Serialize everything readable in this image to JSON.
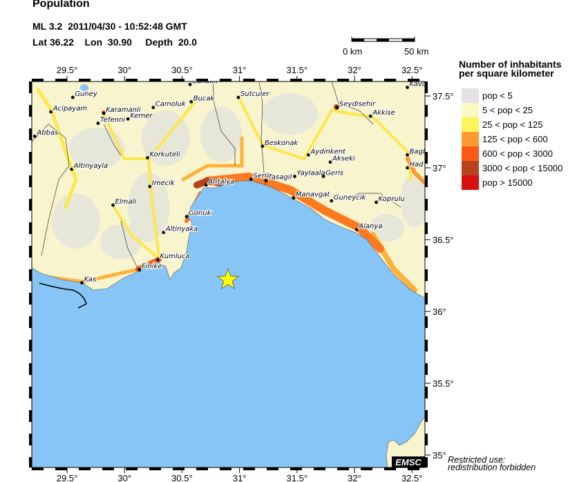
{
  "header": {
    "title": "Population",
    "event_line": "ML 3.2  2011/04/30 - 10:52:48 GMT",
    "location_line": "Lat 36.22    Lon  30.90     Depth  20.0"
  },
  "event": {
    "lat": 36.22,
    "lon": 30.9,
    "depth": 20.0,
    "magnitude": "ML 3.2",
    "marker": "star-icon",
    "marker_color": "#ffff00"
  },
  "scale_bar": {
    "start_label": "0 km",
    "end_label": "50 km"
  },
  "map": {
    "lon_range": [
      29.19,
      32.61
    ],
    "lat_range": [
      34.91,
      37.6
    ],
    "sea_color": "#86c5f5",
    "lon_ticks": [
      "29.5°",
      "30°",
      "30.5°",
      "31°",
      "31.5°",
      "32°",
      "32.5°"
    ],
    "lat_ticks": [
      "37.5°",
      "37°",
      "36.5°",
      "36°",
      "35.5°",
      "35°"
    ],
    "cities": [
      {
        "name": "Canakli",
        "lon": 30.57,
        "lat": 37.58
      },
      {
        "name": "Guney",
        "lon": 29.55,
        "lat": 37.49
      },
      {
        "name": "Acipayam",
        "lon": 29.36,
        "lat": 37.39
      },
      {
        "name": "Abbas",
        "lon": 29.22,
        "lat": 37.22
      },
      {
        "name": "Karamanli",
        "lon": 29.82,
        "lat": 37.38
      },
      {
        "name": "Tefenni",
        "lon": 29.77,
        "lat": 37.31
      },
      {
        "name": "Kemer",
        "lon": 30.03,
        "lat": 37.34
      },
      {
        "name": "Camoluk",
        "lon": 30.25,
        "lat": 37.42
      },
      {
        "name": "Bucak",
        "lon": 30.58,
        "lat": 37.46
      },
      {
        "name": "Altinyayla",
        "lon": 29.54,
        "lat": 36.99
      },
      {
        "name": "Korkuteli",
        "lon": 30.2,
        "lat": 37.07
      },
      {
        "name": "Antalya",
        "lon": 30.71,
        "lat": 36.88
      },
      {
        "name": "Imecik",
        "lon": 30.22,
        "lat": 36.87
      },
      {
        "name": "Elmali",
        "lon": 29.9,
        "lat": 36.74
      },
      {
        "name": "Gonuk",
        "lon": 30.54,
        "lat": 36.66
      },
      {
        "name": "Altinyaka",
        "lon": 30.34,
        "lat": 36.55
      },
      {
        "name": "Kumluca",
        "lon": 30.29,
        "lat": 36.36
      },
      {
        "name": "Finike",
        "lon": 30.13,
        "lat": 36.29
      },
      {
        "name": "Kas",
        "lon": 29.63,
        "lat": 36.2
      },
      {
        "name": "Sutculer",
        "lon": 30.99,
        "lat": 37.49
      },
      {
        "name": "Beskonak",
        "lon": 31.2,
        "lat": 37.15
      },
      {
        "name": "Serik",
        "lon": 31.1,
        "lat": 36.92
      },
      {
        "name": "Tasagil",
        "lon": 31.23,
        "lat": 36.91
      },
      {
        "name": "Yaylaala",
        "lon": 31.48,
        "lat": 36.94
      },
      {
        "name": "Geris",
        "lon": 31.73,
        "lat": 36.94
      },
      {
        "name": "Aydinkent",
        "lon": 31.6,
        "lat": 37.09
      },
      {
        "name": "Akseki",
        "lon": 31.79,
        "lat": 37.04
      },
      {
        "name": "Seydisehir",
        "lon": 31.85,
        "lat": 37.42
      },
      {
        "name": "Akkise",
        "lon": 32.14,
        "lat": 37.36
      },
      {
        "name": "Manavgat",
        "lon": 31.47,
        "lat": 36.79
      },
      {
        "name": "Guneycik",
        "lon": 31.8,
        "lat": 36.77
      },
      {
        "name": "Koprulu",
        "lon": 32.19,
        "lat": 36.76
      },
      {
        "name": "Alanya",
        "lon": 32.02,
        "lat": 36.57
      },
      {
        "name": "Kavc",
        "lon": 32.46,
        "lat": 37.56
      },
      {
        "name": "Bagb",
        "lon": 32.46,
        "lat": 37.09
      },
      {
        "name": "Had",
        "lon": 32.46,
        "lat": 37.0
      }
    ]
  },
  "legend": {
    "title_line1": "Number of inhabitants",
    "title_line2": "per square kilometer",
    "items": [
      {
        "label": "pop < 5",
        "color": "#e3e3e3"
      },
      {
        "label": "5 < pop < 25",
        "color": "#fbf8c4"
      },
      {
        "label": "25 < pop < 125",
        "color": "#fcf55a"
      },
      {
        "label": "125 < pop < 600",
        "color": "#fd9a30"
      },
      {
        "label": "600 < pop < 3000",
        "color": "#fd5a17"
      },
      {
        "label": "3000 < pop < 15000",
        "color": "#b8421a"
      },
      {
        "label": "pop > 15000",
        "color": "#d80f0f"
      }
    ]
  },
  "footer": {
    "logo": "EMSC",
    "notice_line1": "Restricted use:",
    "notice_line2": "redistribution forbidden"
  }
}
